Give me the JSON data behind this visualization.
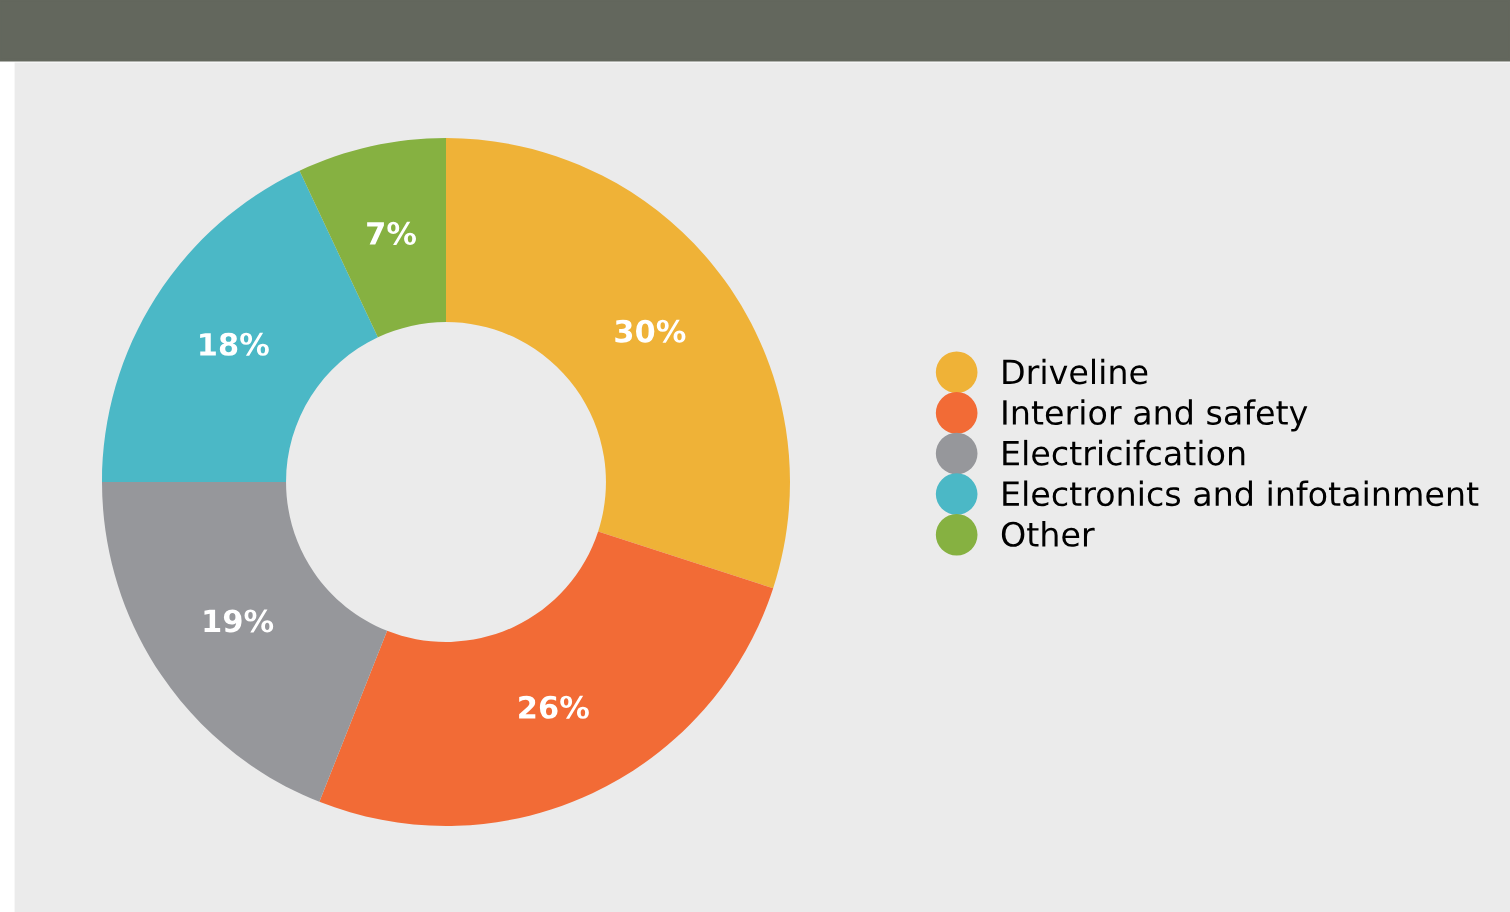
{
  "chart_data": {
    "type": "donut",
    "categories": [
      "Driveline",
      "Interior and safety",
      "Electricifcation",
      "Electronics and infotainment",
      "Other"
    ],
    "values": [
      30,
      26,
      19,
      18,
      7
    ],
    "colors": [
      "#efb237",
      "#f26b36",
      "#96979b",
      "#4bb8c6",
      "#86b141"
    ],
    "value_labels": [
      "30%",
      "26%",
      "19%",
      "18%",
      "7%"
    ],
    "legend": "right"
  }
}
